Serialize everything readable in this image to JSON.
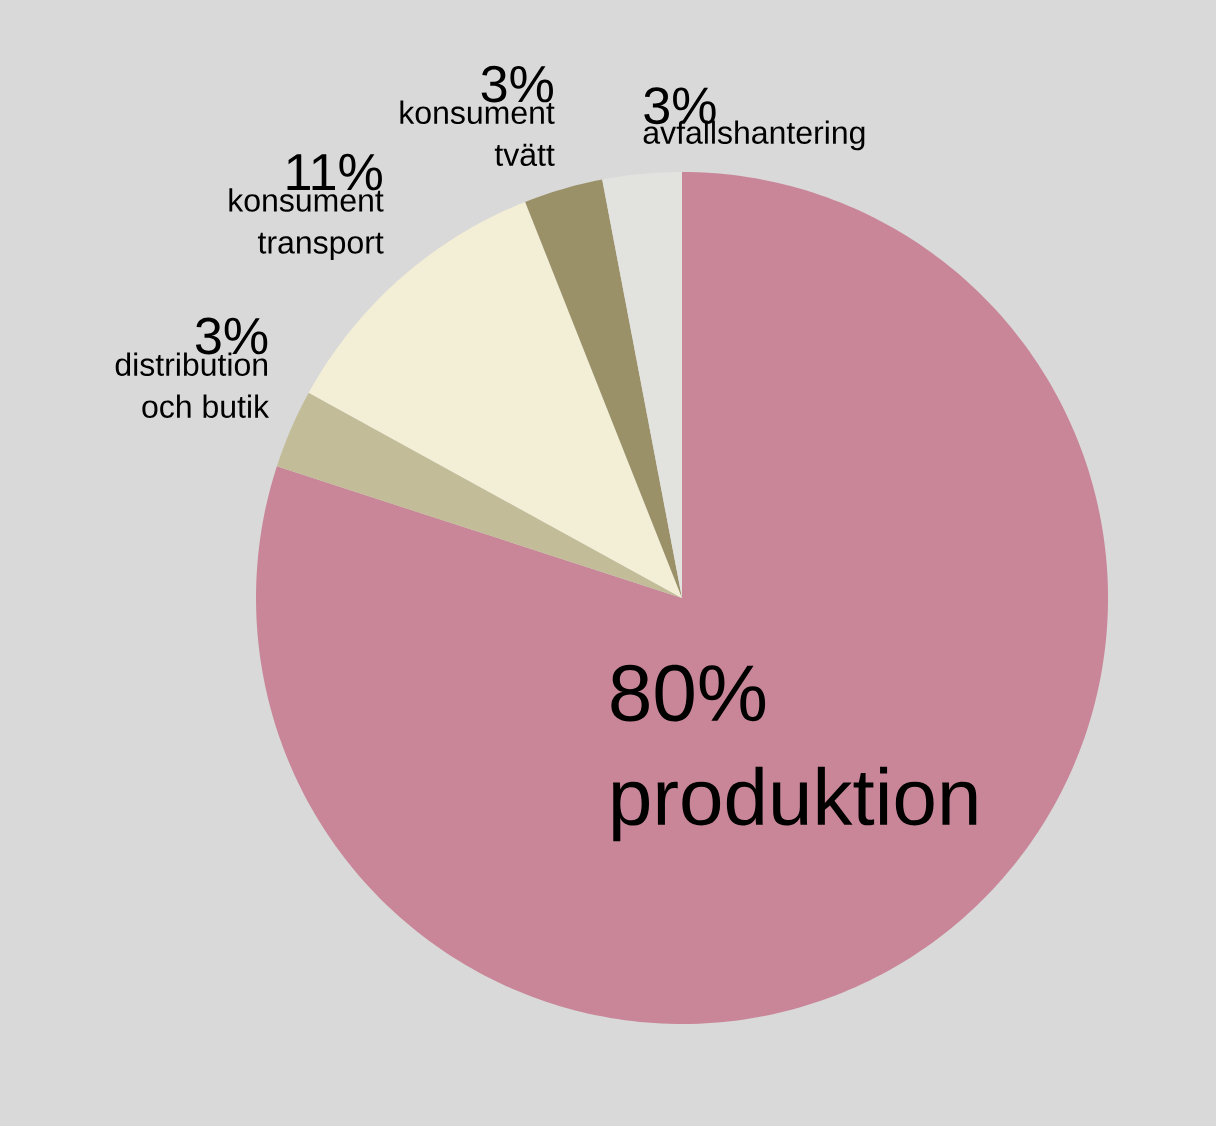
{
  "chart_data": {
    "type": "pie",
    "categories": [
      "produktion",
      "distribution och butik",
      "konsument transport",
      "konsument tvätt",
      "avfallshantering"
    ],
    "values": [
      80,
      3,
      11,
      3,
      3
    ],
    "value_labels": [
      "80%",
      "3%",
      "11%",
      "3%",
      "3%"
    ],
    "colors": [
      "#c98698",
      "#c2bd98",
      "#f3eed6",
      "#9b9168",
      "#e2e2df"
    ]
  }
}
